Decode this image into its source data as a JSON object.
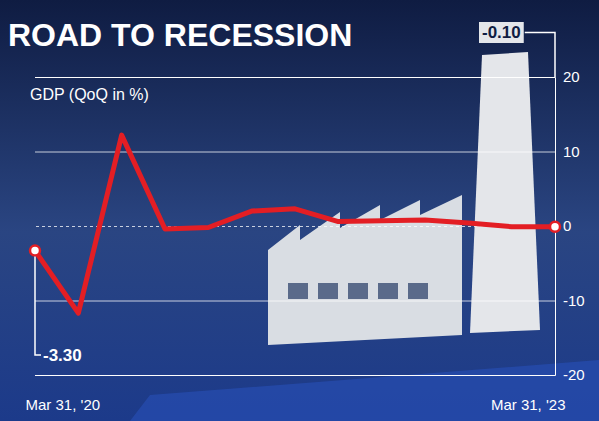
{
  "chart_data": {
    "type": "line",
    "title": "ROAD TO RECESSION",
    "subtitle": "GDP (QoQ in %)",
    "categories": [
      "Mar 31, '20",
      null,
      null,
      null,
      null,
      null,
      null,
      null,
      null,
      null,
      null,
      null,
      "Mar 31, '23"
    ],
    "values": [
      -3.3,
      -11.7,
      12.2,
      -0.4,
      -0.2,
      2.0,
      2.3,
      0.6,
      0.7,
      0.8,
      0.4,
      -0.1,
      -0.1
    ],
    "color": "#e31e24",
    "ylim": [
      -20,
      20
    ],
    "yticks": [
      -20,
      -10,
      0,
      10,
      20
    ],
    "grid": true,
    "annotations": [
      "-3.30",
      "-0.10"
    ]
  }
}
